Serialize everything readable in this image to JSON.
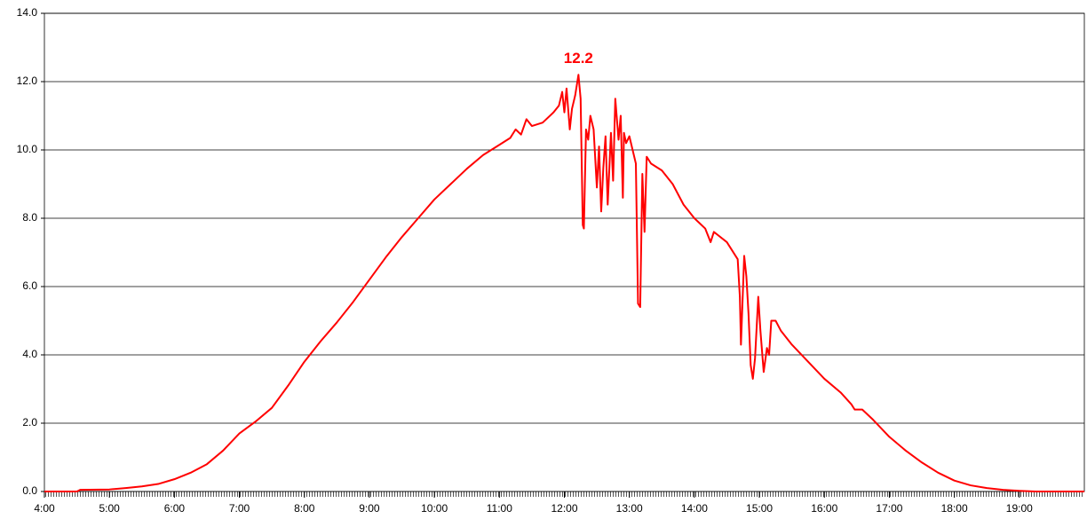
{
  "chart_data": {
    "type": "line",
    "x": [
      240,
      270,
      273,
      300,
      315,
      330,
      345,
      360,
      375,
      390,
      405,
      420,
      435,
      450,
      465,
      480,
      495,
      510,
      525,
      540,
      555,
      570,
      585,
      600,
      615,
      630,
      645,
      660,
      670,
      675,
      680,
      685,
      690,
      700,
      710,
      715,
      718,
      720,
      722,
      725,
      727,
      730,
      733,
      735,
      737,
      738,
      740,
      742,
      744,
      747,
      750,
      752,
      754,
      756,
      758,
      760,
      763,
      765,
      767,
      770,
      772,
      774,
      775,
      777,
      780,
      783,
      786,
      788,
      790,
      792,
      794,
      796,
      800,
      810,
      820,
      830,
      840,
      850,
      855,
      858,
      870,
      880,
      882,
      883,
      886,
      888,
      890,
      892,
      894,
      896,
      899,
      901,
      904,
      907,
      909,
      911,
      915,
      920,
      930,
      945,
      960,
      975,
      985,
      988,
      995,
      1005,
      1020,
      1035,
      1050,
      1065,
      1080,
      1095,
      1110,
      1125,
      1140,
      1155,
      1200
    ],
    "series": [
      {
        "color": "#ff0000",
        "values": [
          0,
          0,
          0.05,
          0.06,
          0.1,
          0.15,
          0.22,
          0.36,
          0.55,
          0.8,
          1.2,
          1.7,
          2.05,
          2.45,
          3.1,
          3.8,
          4.4,
          4.95,
          5.55,
          6.2,
          6.85,
          7.45,
          8.0,
          8.55,
          9.0,
          9.45,
          9.85,
          10.15,
          10.35,
          10.6,
          10.45,
          10.9,
          10.7,
          10.8,
          11.1,
          11.3,
          11.7,
          11.1,
          11.8,
          10.6,
          11.2,
          11.6,
          12.2,
          11.5,
          7.8,
          7.7,
          10.6,
          10.3,
          11.0,
          10.6,
          8.9,
          10.1,
          8.2,
          9.5,
          10.4,
          8.4,
          10.5,
          9.1,
          11.5,
          10.3,
          11.0,
          8.6,
          10.5,
          10.2,
          10.4,
          10.0,
          9.6,
          5.5,
          5.4,
          9.3,
          7.6,
          9.8,
          9.6,
          9.4,
          9.0,
          8.4,
          8.0,
          7.7,
          7.3,
          7.6,
          7.3,
          6.8,
          5.7,
          4.3,
          6.9,
          6.3,
          5.2,
          3.7,
          3.3,
          3.9,
          5.7,
          4.7,
          3.5,
          4.2,
          4.0,
          5.0,
          5.0,
          4.7,
          4.3,
          3.8,
          3.3,
          2.9,
          2.55,
          2.4,
          2.4,
          2.1,
          1.6,
          1.2,
          0.85,
          0.55,
          0.32,
          0.18,
          0.1,
          0.05,
          0.02,
          0,
          0
        ]
      }
    ],
    "annotations": [
      {
        "text": "12.2",
        "x": 733,
        "y": 12.2,
        "color": "#ff0000"
      }
    ],
    "xlim": [
      240,
      1200
    ],
    "xticks": [
      {
        "value": 240,
        "label": "4:00"
      },
      {
        "value": 300,
        "label": "5:00"
      },
      {
        "value": 360,
        "label": "6:00"
      },
      {
        "value": 420,
        "label": "7:00"
      },
      {
        "value": 480,
        "label": "8:00"
      },
      {
        "value": 540,
        "label": "9:00"
      },
      {
        "value": 600,
        "label": "10:00"
      },
      {
        "value": 660,
        "label": "11:00"
      },
      {
        "value": 720,
        "label": "12:00"
      },
      {
        "value": 780,
        "label": "13:00"
      },
      {
        "value": 840,
        "label": "14:00"
      },
      {
        "value": 900,
        "label": "15:00"
      },
      {
        "value": 960,
        "label": "16:00"
      },
      {
        "value": 1020,
        "label": "17:00"
      },
      {
        "value": 1080,
        "label": "18:00"
      },
      {
        "value": 1140,
        "label": "19:00"
      }
    ],
    "ylim": [
      0,
      14
    ],
    "yticks": [
      {
        "value": 0,
        "label": "0.0"
      },
      {
        "value": 2,
        "label": "2.0"
      },
      {
        "value": 4,
        "label": "4.0"
      },
      {
        "value": 6,
        "label": "6.0"
      },
      {
        "value": 8,
        "label": "8.0"
      },
      {
        "value": 10,
        "label": "10.0"
      },
      {
        "value": 12,
        "label": "12.0"
      },
      {
        "value": 14,
        "label": "14.0"
      }
    ],
    "grid": true
  }
}
